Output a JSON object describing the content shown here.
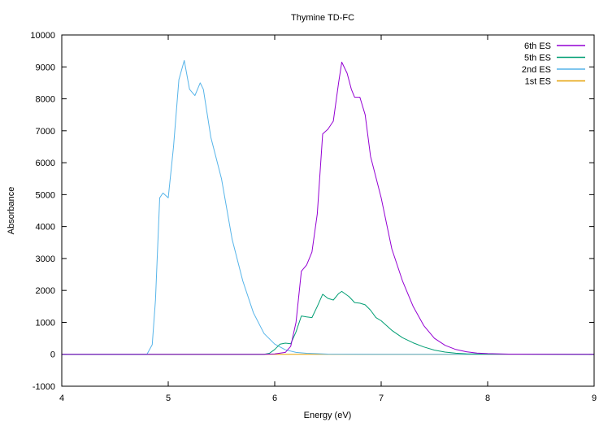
{
  "chart_data": {
    "type": "line",
    "title": "Thymine TD-FC",
    "xlabel": "Energy (eV)",
    "ylabel": "Absorbance",
    "xlim": [
      4,
      9
    ],
    "ylim": [
      -1000,
      10000
    ],
    "x_ticks": [
      "4",
      "5",
      "6",
      "7",
      "8",
      "9"
    ],
    "y_ticks": [
      "-1000",
      "0",
      "1000",
      "2000",
      "3000",
      "4000",
      "5000",
      "6000",
      "7000",
      "8000",
      "9000",
      "10000"
    ],
    "legend_position": "top-right",
    "grid": false,
    "series": [
      {
        "name": "6th ES",
        "color": "#9400d3",
        "points": [
          [
            4.0,
            0
          ],
          [
            5.9,
            0
          ],
          [
            6.0,
            10
          ],
          [
            6.1,
            60
          ],
          [
            6.15,
            250
          ],
          [
            6.2,
            1000
          ],
          [
            6.25,
            2600
          ],
          [
            6.3,
            2800
          ],
          [
            6.35,
            3200
          ],
          [
            6.4,
            4400
          ],
          [
            6.45,
            6900
          ],
          [
            6.5,
            7050
          ],
          [
            6.55,
            7300
          ],
          [
            6.6,
            8500
          ],
          [
            6.63,
            9150
          ],
          [
            6.68,
            8800
          ],
          [
            6.72,
            8300
          ],
          [
            6.75,
            8050
          ],
          [
            6.8,
            8050
          ],
          [
            6.85,
            7500
          ],
          [
            6.9,
            6200
          ],
          [
            7.0,
            4900
          ],
          [
            7.1,
            3300
          ],
          [
            7.2,
            2300
          ],
          [
            7.3,
            1500
          ],
          [
            7.4,
            900
          ],
          [
            7.5,
            500
          ],
          [
            7.6,
            280
          ],
          [
            7.7,
            150
          ],
          [
            7.8,
            80
          ],
          [
            7.9,
            40
          ],
          [
            8.0,
            20
          ],
          [
            8.2,
            5
          ],
          [
            9.0,
            0
          ]
        ]
      },
      {
        "name": "5th ES",
        "color": "#009e73",
        "points": [
          [
            4.0,
            0
          ],
          [
            5.9,
            0
          ],
          [
            5.95,
            30
          ],
          [
            6.0,
            150
          ],
          [
            6.05,
            320
          ],
          [
            6.1,
            350
          ],
          [
            6.15,
            330
          ],
          [
            6.2,
            700
          ],
          [
            6.25,
            1200
          ],
          [
            6.3,
            1170
          ],
          [
            6.35,
            1150
          ],
          [
            6.4,
            1500
          ],
          [
            6.45,
            1880
          ],
          [
            6.5,
            1750
          ],
          [
            6.55,
            1700
          ],
          [
            6.6,
            1900
          ],
          [
            6.63,
            1970
          ],
          [
            6.7,
            1800
          ],
          [
            6.75,
            1620
          ],
          [
            6.8,
            1600
          ],
          [
            6.85,
            1550
          ],
          [
            6.9,
            1380
          ],
          [
            6.95,
            1150
          ],
          [
            7.0,
            1050
          ],
          [
            7.1,
            750
          ],
          [
            7.2,
            520
          ],
          [
            7.3,
            360
          ],
          [
            7.4,
            230
          ],
          [
            7.5,
            130
          ],
          [
            7.6,
            70
          ],
          [
            7.7,
            35
          ],
          [
            7.8,
            15
          ],
          [
            8.0,
            5
          ],
          [
            9.0,
            0
          ]
        ]
      },
      {
        "name": "2nd ES",
        "color": "#56b4e9",
        "points": [
          [
            4.0,
            0
          ],
          [
            4.8,
            0
          ],
          [
            4.85,
            300
          ],
          [
            4.88,
            1700
          ],
          [
            4.92,
            4900
          ],
          [
            4.95,
            5050
          ],
          [
            5.0,
            4900
          ],
          [
            5.05,
            6500
          ],
          [
            5.1,
            8600
          ],
          [
            5.15,
            9200
          ],
          [
            5.2,
            8300
          ],
          [
            5.25,
            8100
          ],
          [
            5.3,
            8500
          ],
          [
            5.33,
            8300
          ],
          [
            5.4,
            6800
          ],
          [
            5.5,
            5500
          ],
          [
            5.6,
            3600
          ],
          [
            5.7,
            2300
          ],
          [
            5.8,
            1300
          ],
          [
            5.9,
            650
          ],
          [
            6.0,
            320
          ],
          [
            6.1,
            140
          ],
          [
            6.2,
            60
          ],
          [
            6.3,
            30
          ],
          [
            6.5,
            5
          ],
          [
            7.0,
            0
          ],
          [
            9.0,
            0
          ]
        ]
      },
      {
        "name": "1st ES",
        "color": "#e69f00",
        "points": [
          [
            4.0,
            0
          ],
          [
            9.0,
            0
          ]
        ]
      }
    ]
  }
}
